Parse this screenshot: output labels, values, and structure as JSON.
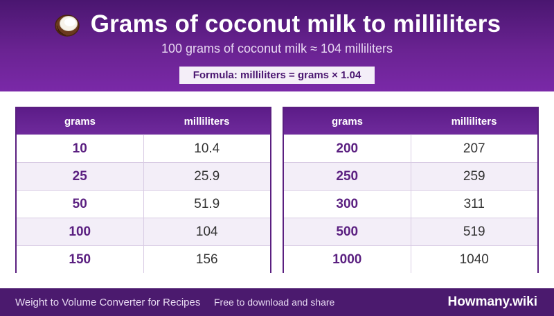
{
  "header": {
    "title": "Grams of coconut milk to milliliters",
    "subtitle": "100 grams of coconut milk ≈ 104 milliliters",
    "formula": "Formula: milliliters = grams × 1.04",
    "icon": "coconut-icon"
  },
  "tables": [
    {
      "col_grams": "grams",
      "col_ml": "milliliters",
      "rows": [
        {
          "grams": "10",
          "ml": "10.4"
        },
        {
          "grams": "25",
          "ml": "25.9"
        },
        {
          "grams": "50",
          "ml": "51.9"
        },
        {
          "grams": "100",
          "ml": "104"
        },
        {
          "grams": "150",
          "ml": "156"
        }
      ]
    },
    {
      "col_grams": "grams",
      "col_ml": "milliliters",
      "rows": [
        {
          "grams": "200",
          "ml": "207"
        },
        {
          "grams": "250",
          "ml": "259"
        },
        {
          "grams": "300",
          "ml": "311"
        },
        {
          "grams": "500",
          "ml": "519"
        },
        {
          "grams": "1000",
          "ml": "1040"
        }
      ]
    }
  ],
  "footer": {
    "left": "Weight to Volume Converter for Recipes",
    "sub": "Free to download and share",
    "brand": "Howmany.wiki"
  },
  "colors": {
    "header_top": "#4a1670",
    "header_bottom": "#7a29a8",
    "accent": "#5a1f80",
    "row_alt": "#f3eef8",
    "footer_bg": "#4b1a6e"
  }
}
